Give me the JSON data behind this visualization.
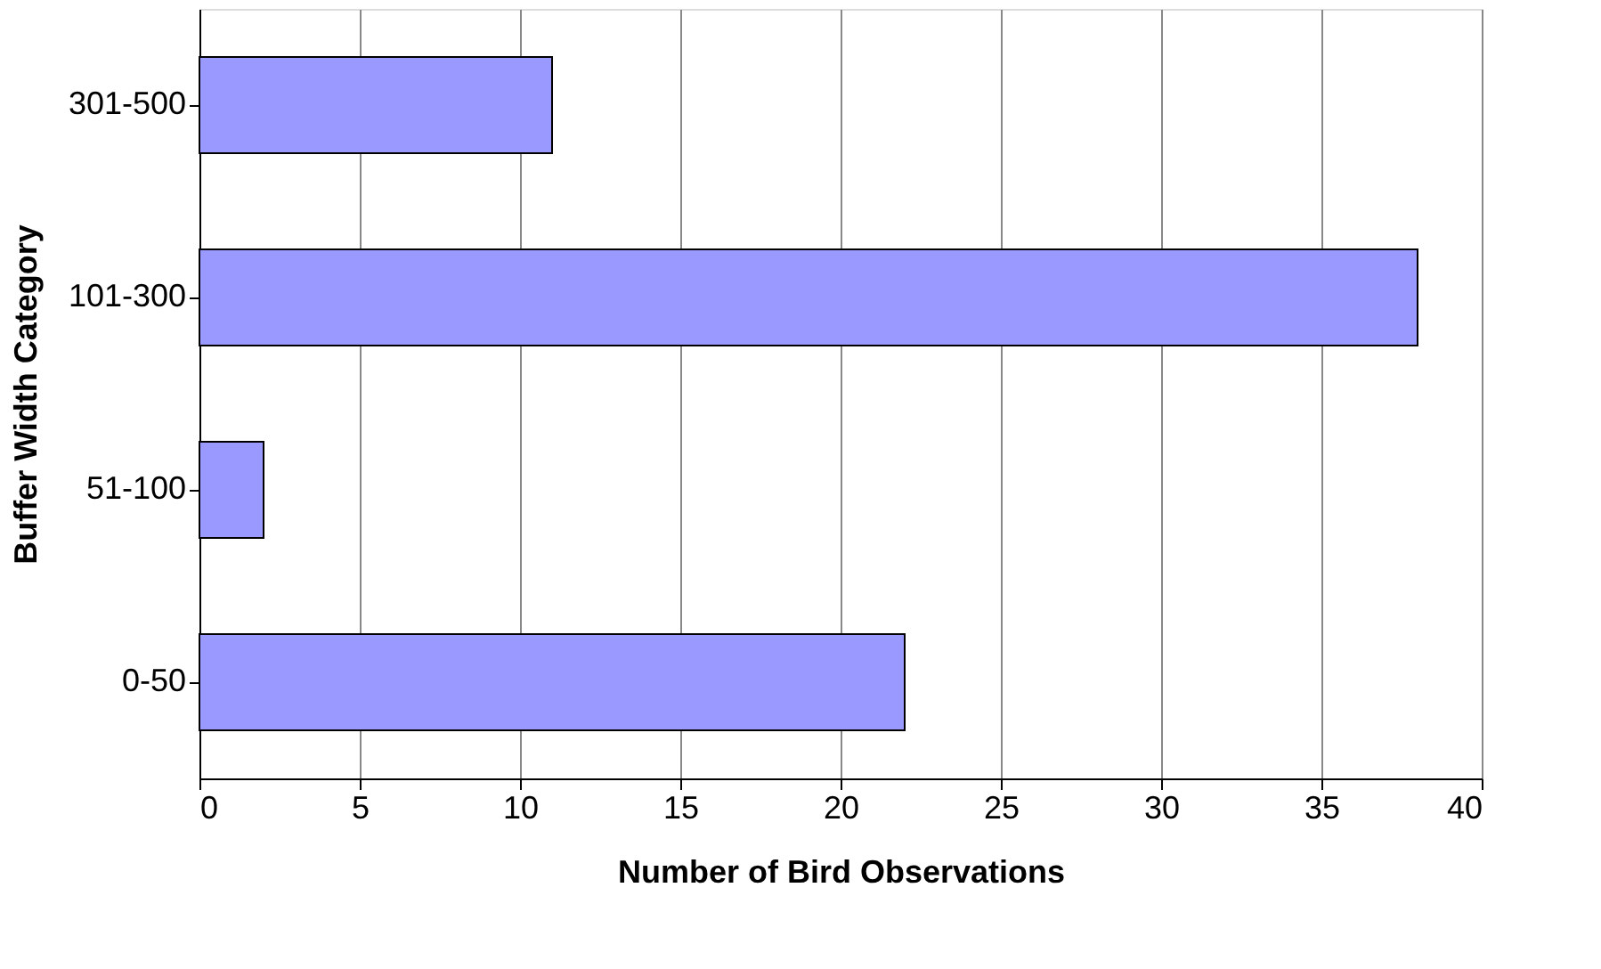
{
  "chart_data": {
    "type": "bar",
    "orientation": "horizontal",
    "categories": [
      "301-500",
      "101-300",
      "51-100",
      "0-50"
    ],
    "values": [
      11,
      38,
      2,
      22
    ],
    "color": "#9999ff",
    "xlim": [
      0,
      40
    ],
    "xticks": [
      0,
      5,
      10,
      15,
      20,
      25,
      30,
      35,
      40
    ],
    "grid": "x",
    "xlabel": "Number of Bird Observations",
    "ylabel": "Buffer Width Category"
  }
}
